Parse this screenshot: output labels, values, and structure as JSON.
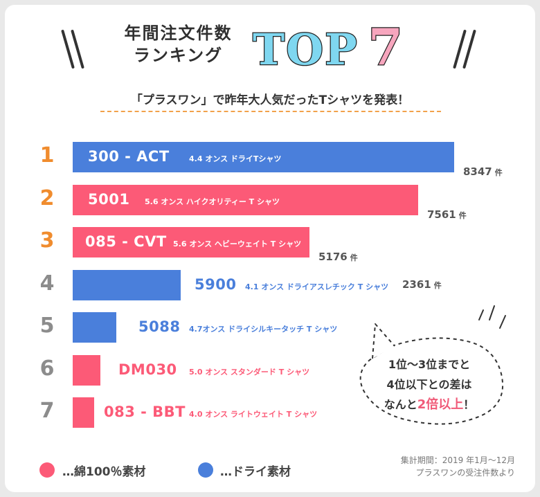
{
  "header": {
    "title_line1": "年間注文件数",
    "title_line2": "ランキング",
    "top_word": "TOP",
    "top_num": "7",
    "subtitle": "「プラスワン」で昨年大人気だったTシャツを発表！"
  },
  "colors": {
    "cotton": "#fc5a77",
    "dry": "#4a7fdb",
    "rank_top": "#f08c2e",
    "rank_other": "#8c8c8c"
  },
  "chart_data": {
    "type": "bar",
    "orientation": "horizontal",
    "unit": "件",
    "categories": [
      "1",
      "2",
      "3",
      "4",
      "5",
      "6",
      "7"
    ],
    "items": [
      {
        "rank": "1",
        "code": "300 - ACT",
        "desc": "4.4 オンス ドライTシャツ",
        "value": 8347,
        "value_label": "8347",
        "material": "dry"
      },
      {
        "rank": "2",
        "code": "5001",
        "desc": "5.6 オンス ハイクオリティー T シャツ",
        "value": 7561,
        "value_label": "7561",
        "material": "cotton"
      },
      {
        "rank": "3",
        "code": "085 - CVT",
        "desc": "5.6 オンス ヘビーウェイト T シャツ",
        "value": 5176,
        "value_label": "5176",
        "material": "cotton"
      },
      {
        "rank": "4",
        "code": "5900",
        "desc": "4.1 オンス ドライアスレチック T シャツ",
        "value": 2361,
        "value_label": "2361",
        "material": "dry"
      },
      {
        "rank": "5",
        "code": "5088",
        "desc": "4.7オンス ドライシルキータッチ T シャツ",
        "value": null,
        "value_label": "",
        "material": "dry"
      },
      {
        "rank": "6",
        "code": "DM030",
        "desc": "5.0 オンス スタンダード T シャツ",
        "value": null,
        "value_label": "",
        "material": "cotton"
      },
      {
        "rank": "7",
        "code": "083 - BBT",
        "desc": "4.0 オンス ライトウェイト T シャツ",
        "value": null,
        "value_label": "",
        "material": "cotton"
      }
    ]
  },
  "bubble": {
    "line1": "1位〜3位までと",
    "line2": "4位以下との差は",
    "line3_pre": "なんと",
    "line3_hl": "2倍以上",
    "line3_post": "！"
  },
  "legend": {
    "cotton": "…綿100％素材",
    "dry": "…ドライ素材"
  },
  "period": {
    "line1": "集計期間：2019 年1月〜12月",
    "line2": "プラスワンの受注件数より"
  }
}
